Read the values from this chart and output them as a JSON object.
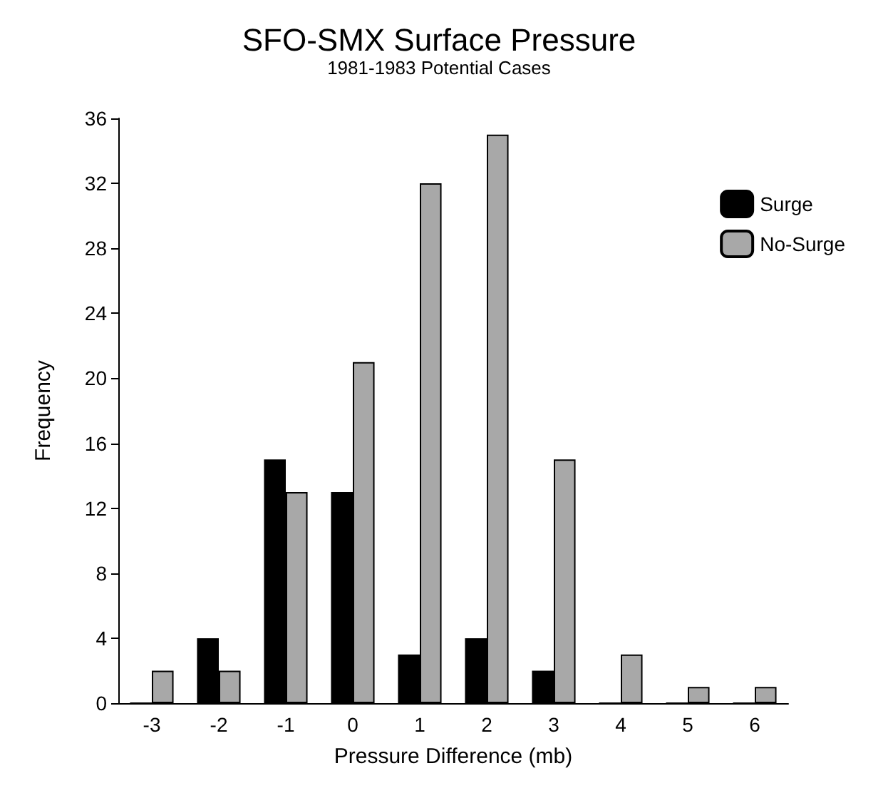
{
  "chart_data": {
    "type": "bar",
    "title": "SFO-SMX Surface Pressure",
    "subtitle": "1981-1983 Potential Cases",
    "xlabel": "Pressure Difference (mb)",
    "ylabel": "Frequency",
    "categories": [
      "-3",
      "-2",
      "-1",
      "0",
      "1",
      "2",
      "3",
      "4",
      "5",
      "6"
    ],
    "series": [
      {
        "name": "Surge",
        "color": "#000000",
        "values": [
          0,
          4,
          15,
          13,
          3,
          4,
          2,
          0,
          0,
          0
        ]
      },
      {
        "name": "No-Surge",
        "color": "#a8a8a8",
        "values": [
          2,
          2,
          13,
          21,
          32,
          35,
          15,
          3,
          1,
          1
        ]
      }
    ],
    "ylim": [
      0,
      36
    ],
    "yticks": [
      0,
      4,
      8,
      12,
      16,
      20,
      24,
      28,
      32,
      36
    ],
    "grid": false,
    "legend": "top right"
  }
}
